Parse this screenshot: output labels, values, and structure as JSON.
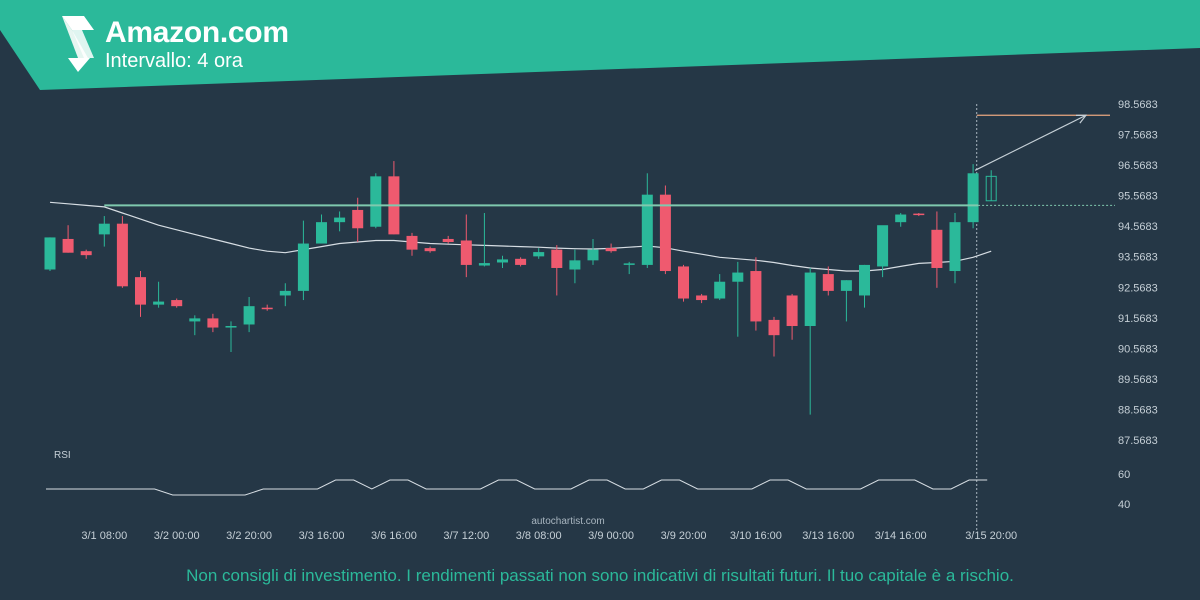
{
  "header": {
    "title": "Amazon.com",
    "subtitle": "Intervallo: 4 ora"
  },
  "watermark": "autochartist.com",
  "disclaimer": "Non consigli di investimento. I rendimenti passati non sono indicativi di risultati futuri. Il tuo capitale è a rischio.",
  "colors": {
    "background": "#253746",
    "banner": "#2bb99a",
    "bullish": "#2bb99a",
    "bearish": "#ef5a6f",
    "resistance_line": "#7fc9ae",
    "moving_average": "#d6dde3",
    "target_line": "#e8a77f"
  },
  "chart_data": {
    "type": "candlestick",
    "y_tick_labels": [
      "98.5683",
      "97.5683",
      "96.5683",
      "95.5683",
      "94.5683",
      "93.5683",
      "92.5683",
      "91.5683",
      "90.5683",
      "89.5683",
      "88.5683",
      "87.5683"
    ],
    "ylim": [
      87.5683,
      98.5683
    ],
    "x_tick_labels": [
      "3/1 08:00",
      "3/2 00:00",
      "3/2 20:00",
      "3/3 16:00",
      "3/6 16:00",
      "3/7 12:00",
      "3/8 08:00",
      "3/9 00:00",
      "3/9 20:00",
      "3/10 16:00",
      "3/13 16:00",
      "3/14 16:00",
      "3/15 20:00"
    ],
    "x_tick_index": [
      3,
      7,
      11,
      15,
      19,
      23,
      27,
      31,
      35,
      39,
      43,
      47,
      52
    ],
    "candles": [
      {
        "o": 93.15,
        "h": 94.2,
        "l": 93.1,
        "c": 94.2
      },
      {
        "o": 94.15,
        "h": 94.6,
        "l": 93.7,
        "c": 93.7
      },
      {
        "o": 93.75,
        "h": 93.8,
        "l": 93.5,
        "c": 93.62
      },
      {
        "o": 94.3,
        "h": 94.9,
        "l": 93.9,
        "c": 94.65
      },
      {
        "o": 94.65,
        "h": 94.9,
        "l": 92.55,
        "c": 92.6
      },
      {
        "o": 92.9,
        "h": 93.1,
        "l": 91.6,
        "c": 92.0
      },
      {
        "o": 92.0,
        "h": 92.75,
        "l": 91.9,
        "c": 92.1
      },
      {
        "o": 92.15,
        "h": 92.2,
        "l": 91.9,
        "c": 91.95
      },
      {
        "o": 91.45,
        "h": 91.65,
        "l": 91.0,
        "c": 91.55
      },
      {
        "o": 91.55,
        "h": 91.7,
        "l": 91.1,
        "c": 91.25
      },
      {
        "o": 91.25,
        "h": 91.45,
        "l": 90.45,
        "c": 91.3
      },
      {
        "o": 91.35,
        "h": 92.25,
        "l": 91.1,
        "c": 91.95
      },
      {
        "o": 91.9,
        "h": 92.0,
        "l": 91.8,
        "c": 91.85
      },
      {
        "o": 92.3,
        "h": 92.7,
        "l": 91.95,
        "c": 92.45
      },
      {
        "o": 92.45,
        "h": 94.75,
        "l": 92.15,
        "c": 94.0
      },
      {
        "o": 94.0,
        "h": 94.95,
        "l": 94.0,
        "c": 94.7
      },
      {
        "o": 94.7,
        "h": 95.05,
        "l": 94.4,
        "c": 94.85
      },
      {
        "o": 95.1,
        "h": 95.5,
        "l": 94.05,
        "c": 94.5
      },
      {
        "o": 94.55,
        "h": 96.3,
        "l": 94.5,
        "c": 96.2
      },
      {
        "o": 96.2,
        "h": 96.7,
        "l": 94.3,
        "c": 94.3
      },
      {
        "o": 94.25,
        "h": 94.35,
        "l": 93.6,
        "c": 93.8
      },
      {
        "o": 93.85,
        "h": 93.9,
        "l": 93.7,
        "c": 93.75
      },
      {
        "o": 94.15,
        "h": 94.25,
        "l": 94.0,
        "c": 94.05
      },
      {
        "o": 94.1,
        "h": 94.95,
        "l": 92.9,
        "c": 93.3
      },
      {
        "o": 93.28,
        "h": 95.0,
        "l": 93.25,
        "c": 93.36
      },
      {
        "o": 93.38,
        "h": 93.6,
        "l": 93.2,
        "c": 93.48
      },
      {
        "o": 93.5,
        "h": 93.55,
        "l": 93.25,
        "c": 93.3
      },
      {
        "o": 93.58,
        "h": 93.85,
        "l": 93.5,
        "c": 93.72
      },
      {
        "o": 93.8,
        "h": 93.95,
        "l": 92.3,
        "c": 93.2
      },
      {
        "o": 93.15,
        "h": 93.8,
        "l": 92.7,
        "c": 93.45
      },
      {
        "o": 93.45,
        "h": 94.15,
        "l": 93.3,
        "c": 93.8
      },
      {
        "o": 93.85,
        "h": 94.0,
        "l": 93.7,
        "c": 93.75
      },
      {
        "o": 93.35,
        "h": 93.4,
        "l": 93.0,
        "c": 93.35
      },
      {
        "o": 93.3,
        "h": 96.3,
        "l": 93.2,
        "c": 95.6
      },
      {
        "o": 95.6,
        "h": 95.9,
        "l": 93.0,
        "c": 93.1
      },
      {
        "o": 93.25,
        "h": 93.3,
        "l": 92.1,
        "c": 92.2
      },
      {
        "o": 92.3,
        "h": 92.35,
        "l": 92.05,
        "c": 92.15
      },
      {
        "o": 92.2,
        "h": 93.0,
        "l": 92.15,
        "c": 92.75
      },
      {
        "o": 92.75,
        "h": 93.4,
        "l": 90.95,
        "c": 93.05
      },
      {
        "o": 93.1,
        "h": 93.55,
        "l": 91.15,
        "c": 91.45
      },
      {
        "o": 91.5,
        "h": 91.6,
        "l": 90.3,
        "c": 91.0
      },
      {
        "o": 92.3,
        "h": 92.35,
        "l": 90.85,
        "c": 91.3
      },
      {
        "o": 91.3,
        "h": 93.2,
        "l": 88.4,
        "c": 93.05
      },
      {
        "o": 93.0,
        "h": 93.25,
        "l": 92.3,
        "c": 92.45
      },
      {
        "o": 92.45,
        "h": 92.8,
        "l": 91.45,
        "c": 92.8
      },
      {
        "o": 92.3,
        "h": 93.3,
        "l": 91.9,
        "c": 93.3
      },
      {
        "o": 93.25,
        "h": 94.5,
        "l": 92.9,
        "c": 94.6
      },
      {
        "o": 94.7,
        "h": 95.0,
        "l": 94.55,
        "c": 94.95
      },
      {
        "o": 94.98,
        "h": 95.0,
        "l": 94.9,
        "c": 94.96
      },
      {
        "o": 94.45,
        "h": 95.05,
        "l": 92.55,
        "c": 93.2
      },
      {
        "o": 93.1,
        "h": 95.0,
        "l": 92.7,
        "c": 94.7
      },
      {
        "o": 94.7,
        "h": 96.6,
        "l": 94.5,
        "c": 96.3
      },
      {
        "o": 95.4,
        "h": 96.4,
        "l": 95.4,
        "c": 96.2
      }
    ],
    "last_candle_outlined": true,
    "moving_average": [
      95.35,
      95.3,
      95.25,
      95.2,
      95.0,
      94.8,
      94.6,
      94.45,
      94.3,
      94.15,
      94.0,
      93.85,
      93.75,
      93.7,
      93.8,
      93.9,
      94.0,
      94.05,
      94.1,
      94.1,
      94.05,
      94.0,
      93.98,
      93.96,
      93.94,
      93.92,
      93.9,
      93.88,
      93.85,
      93.83,
      93.82,
      93.84,
      93.88,
      93.92,
      93.86,
      93.75,
      93.65,
      93.55,
      93.5,
      93.45,
      93.38,
      93.28,
      93.2,
      93.15,
      93.1,
      93.1,
      93.15,
      93.25,
      93.35,
      93.38,
      93.42,
      93.55,
      93.75
    ],
    "resistance_level": 95.25,
    "target_level": 98.2,
    "forecast_start_index": 51,
    "indicator": {
      "name": "RSI",
      "y_tick_labels": [
        "60",
        "40"
      ],
      "values": [
        50,
        50,
        50,
        50,
        50,
        50,
        50,
        46,
        46,
        46,
        46,
        46,
        50,
        50,
        50,
        50,
        56,
        56,
        50,
        56,
        56,
        50,
        50,
        50,
        50,
        56,
        56,
        50,
        50,
        50,
        56,
        56,
        50,
        50,
        56,
        56,
        50,
        50,
        50,
        50,
        56,
        56,
        50,
        50,
        50,
        50,
        56,
        56,
        56,
        50,
        50,
        56,
        56
      ]
    }
  }
}
